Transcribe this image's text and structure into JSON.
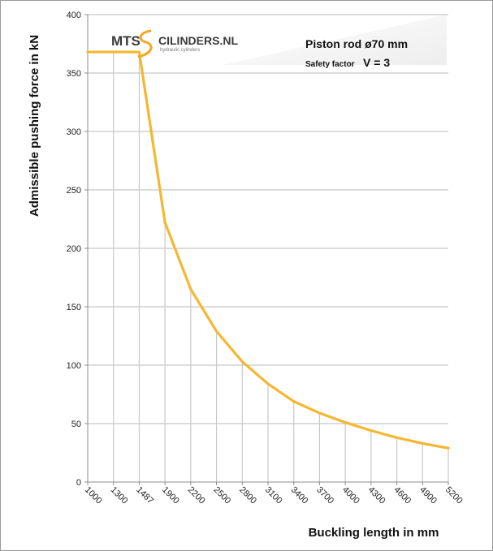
{
  "chart_data": {
    "type": "line",
    "title": "",
    "xlabel": "Buckling length in mm",
    "ylabel": "Admissible pushing force in kN",
    "x_categories": [
      "1000",
      "1300",
      "1487",
      "1900",
      "2200",
      "2500",
      "2800",
      "3100",
      "3400",
      "3700",
      "4000",
      "4300",
      "4600",
      "4900",
      "5200"
    ],
    "series": [
      {
        "name": "",
        "color": "#F5B731",
        "values": [
          368,
          368,
          368,
          222,
          165,
          129,
          103,
          84,
          69,
          59,
          51,
          44,
          38,
          33,
          29
        ]
      }
    ],
    "ylim": [
      0,
      400
    ],
    "yticks": [
      0,
      50,
      100,
      150,
      200,
      250,
      300,
      350,
      400
    ],
    "grid": true,
    "legend": "none"
  },
  "annotation": {
    "line1": "Piston rod ø70 mm",
    "line2_prefix": "Safety factor",
    "line2_value": "V = 3"
  },
  "logo": {
    "brand": "MTS",
    "name": "CILINDERS.NL",
    "tagline": "hydraulic cylinders",
    "accent_color": "#F5A623"
  }
}
